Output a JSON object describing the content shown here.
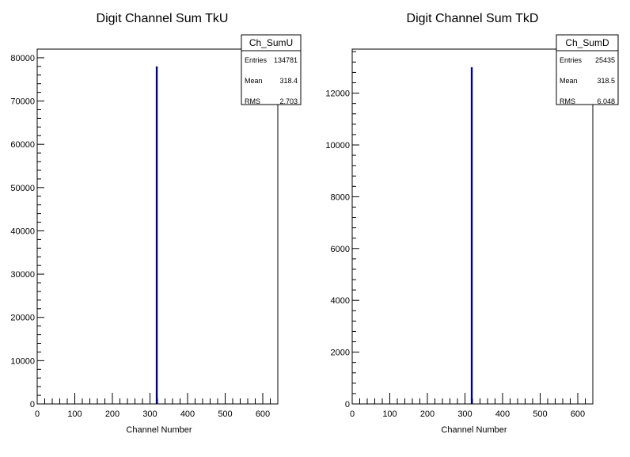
{
  "chart_data": [
    {
      "type": "bar",
      "title": "Digit Channel Sum TkU",
      "xlabel": "Channel Number",
      "ylabel": "",
      "xlim": [
        0,
        640
      ],
      "ylim": [
        0,
        82000
      ],
      "x_ticks": [
        "0",
        "100",
        "200",
        "300",
        "400",
        "500",
        "600"
      ],
      "y_ticks": [
        "0",
        "10000",
        "20000",
        "30000",
        "40000",
        "50000",
        "60000",
        "70000",
        "80000"
      ],
      "x_tick_values": [
        0,
        100,
        200,
        300,
        400,
        500,
        600
      ],
      "y_tick_values": [
        0,
        10000,
        20000,
        30000,
        40000,
        50000,
        60000,
        70000,
        80000
      ],
      "bars": [
        {
          "x": 318,
          "value": 78000
        }
      ],
      "bar_color": "#000080",
      "grid": false,
      "legend_position": "top-right",
      "stats": {
        "name": "Ch_SumU",
        "rows": [
          {
            "label": "Entries",
            "value": "134781"
          },
          {
            "label": "Mean",
            "value": "318.4"
          },
          {
            "label": "RMS",
            "value": "2.703"
          }
        ]
      }
    },
    {
      "type": "bar",
      "title": "Digit Channel Sum TkD",
      "xlabel": "Channel Number",
      "ylabel": "",
      "xlim": [
        0,
        640
      ],
      "ylim": [
        0,
        13700
      ],
      "x_ticks": [
        "0",
        "100",
        "200",
        "300",
        "400",
        "500",
        "600"
      ],
      "y_ticks": [
        "0",
        "2000",
        "4000",
        "6000",
        "8000",
        "10000",
        "12000"
      ],
      "x_tick_values": [
        0,
        100,
        200,
        300,
        400,
        500,
        600
      ],
      "y_tick_values": [
        0,
        2000,
        4000,
        6000,
        8000,
        10000,
        12000
      ],
      "bars": [
        {
          "x": 318,
          "value": 13000
        }
      ],
      "bar_color": "#000080",
      "grid": false,
      "legend_position": "top-right",
      "stats": {
        "name": "Ch_SumD",
        "rows": [
          {
            "label": "Entries",
            "value": "25435"
          },
          {
            "label": "Mean",
            "value": "318.5"
          },
          {
            "label": "RMS",
            "value": "6.048"
          }
        ]
      }
    }
  ]
}
